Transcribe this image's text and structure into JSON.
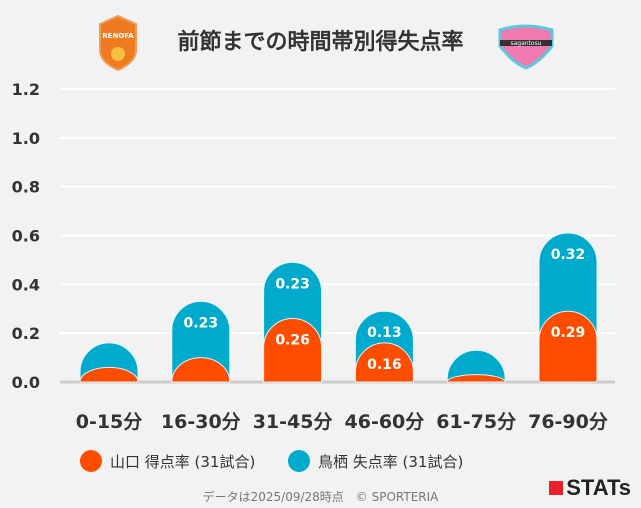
{
  "title": "前節までの時間帯別得失点率",
  "footer": "データは2025/09/28時点　© SPORTERIA",
  "brand": "STATs",
  "logos": {
    "left": "RENOFA",
    "right": "sagantosu"
  },
  "chart_data": {
    "type": "bar",
    "stacked": true,
    "categories": [
      "0-15分",
      "16-30分",
      "31-45分",
      "46-60分",
      "61-75分",
      "76-90分"
    ],
    "series": [
      {
        "name": "山口 得点率 (31試合)",
        "color": "#ff4d00",
        "values": [
          0.06,
          0.1,
          0.26,
          0.16,
          0.03,
          0.29
        ]
      },
      {
        "name": "鳥栖 失点率 (31試合)",
        "color": "#00aacc",
        "values": [
          0.1,
          0.23,
          0.23,
          0.13,
          0.1,
          0.32
        ]
      }
    ],
    "ylim": [
      0,
      1.2
    ],
    "yticks": [
      "0.0",
      "0.2",
      "0.4",
      "0.6",
      "0.8",
      "1.0",
      "1.2"
    ],
    "grid": true,
    "legend": "bottom"
  }
}
